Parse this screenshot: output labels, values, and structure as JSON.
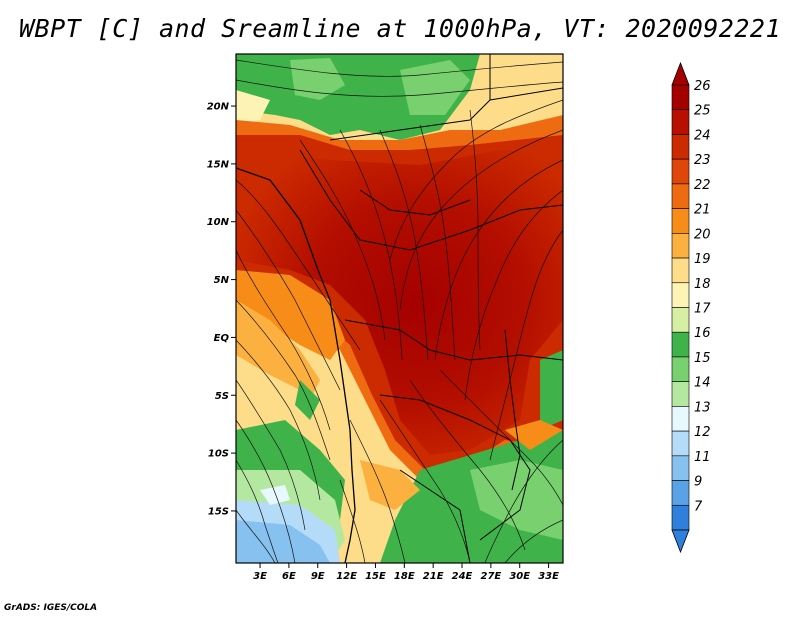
{
  "title": "WBPT [C] and Sreamline at 1000hPa, VT: 2020092221",
  "credit": "GrADS: IGES/COLA",
  "map": {
    "lat_labels": [
      "20N",
      "15N",
      "10N",
      "5N",
      "EQ",
      "5S",
      "10S",
      "15S"
    ],
    "lat_values": [
      20,
      15,
      10,
      5,
      0,
      -5,
      -10,
      -15
    ],
    "lon_labels": [
      "3E",
      "6E",
      "9E",
      "12E",
      "15E",
      "18E",
      "21E",
      "24E",
      "27E",
      "30E",
      "33E"
    ],
    "lon_values": [
      3,
      6,
      9,
      12,
      15,
      18,
      21,
      24,
      27,
      30,
      33
    ],
    "lon_range": [
      0.5,
      34.5
    ],
    "lat_range": [
      -19.5,
      24.5
    ]
  },
  "colorbar": {
    "labels": [
      "26",
      "25",
      "24",
      "23",
      "22",
      "21",
      "20",
      "19",
      "18",
      "17",
      "16",
      "15",
      "14",
      "13",
      "12",
      "11",
      "9",
      "7"
    ],
    "colors": {
      "26": "#a50000",
      "25": "#b70f00",
      "24": "#cc2a00",
      "23": "#e0460a",
      "22": "#ee6b12",
      "21": "#f78c18",
      "20": "#fbb040",
      "19": "#fddc8a",
      "18": "#fdf3b5",
      "17": "#d6efa2",
      "16": "#3fb34a",
      "15": "#78d16e",
      "14": "#b4e8a0",
      "13": "#e8f8ff",
      "12": "#b4dcf8",
      "11": "#86c1f0",
      "9": "#5aa2e6",
      "7": "#2f7fdc"
    }
  }
}
